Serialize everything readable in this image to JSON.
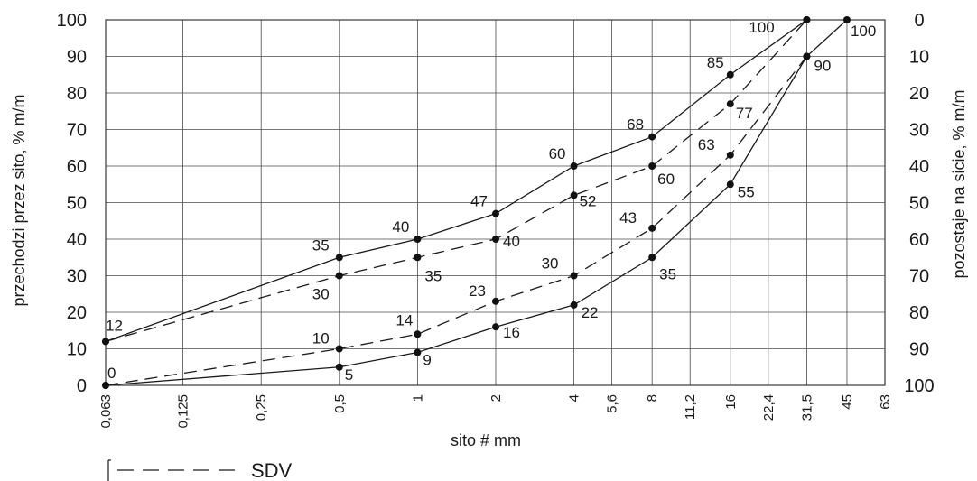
{
  "chart_data": {
    "type": "line",
    "x_ticks": [
      "0,063",
      "0,125",
      "0,25",
      "0,5",
      "1",
      "2",
      "4",
      "5,6",
      "8",
      "11,2",
      "16",
      "22,4",
      "31,5",
      "45",
      "63"
    ],
    "y_left_ticks": [
      "0",
      "10",
      "20",
      "30",
      "40",
      "50",
      "60",
      "70",
      "80",
      "90",
      "100"
    ],
    "y_right_ticks": [
      "100",
      "90",
      "80",
      "70",
      "60",
      "50",
      "40",
      "30",
      "20",
      "10",
      "0"
    ],
    "xlabel": "sito # mm",
    "ylabel": "przechodzi przez sito, % m/m",
    "ylabel_right": "pozostaje na sicie, % m/m",
    "ylim": [
      0,
      100
    ],
    "x_scale": "log",
    "grid": true,
    "legend": {
      "position": "bottom-left",
      "entries": [
        {
          "label": "SDV",
          "style": "dashed"
        }
      ]
    },
    "series": [
      {
        "style": "solid",
        "points": [
          {
            "x": "0,063",
            "y": 12,
            "label": "12"
          },
          {
            "x": "0,5",
            "y": 35,
            "label": "35"
          },
          {
            "x": "1",
            "y": 40,
            "label": "40"
          },
          {
            "x": "2",
            "y": 47,
            "label": "47"
          },
          {
            "x": "4",
            "y": 60,
            "label": "60"
          },
          {
            "x": "8",
            "y": 68,
            "label": "68"
          },
          {
            "x": "16",
            "y": 85,
            "label": "85"
          },
          {
            "x": "31,5",
            "y": 100,
            "label": "100"
          }
        ]
      },
      {
        "name": "SDV",
        "style": "dashed",
        "points": [
          {
            "x": "0,063",
            "y": 12,
            "label": ""
          },
          {
            "x": "0,5",
            "y": 30,
            "label": "30"
          },
          {
            "x": "1",
            "y": 35,
            "label": "35"
          },
          {
            "x": "2",
            "y": 40,
            "label": "40"
          },
          {
            "x": "4",
            "y": 52,
            "label": "52"
          },
          {
            "x": "8",
            "y": 60,
            "label": "60"
          },
          {
            "x": "16",
            "y": 77,
            "label": "77"
          },
          {
            "x": "31,5",
            "y": 100,
            "label": ""
          }
        ]
      },
      {
        "name": "SDV",
        "style": "dashed",
        "points": [
          {
            "x": "0,063",
            "y": 0,
            "label": ""
          },
          {
            "x": "0,5",
            "y": 10,
            "label": "10"
          },
          {
            "x": "1",
            "y": 14,
            "label": "14"
          },
          {
            "x": "2",
            "y": 23,
            "label": "23"
          },
          {
            "x": "4",
            "y": 30,
            "label": "30"
          },
          {
            "x": "8",
            "y": 43,
            "label": "43"
          },
          {
            "x": "16",
            "y": 63,
            "label": "63"
          },
          {
            "x": "31,5",
            "y": 90,
            "label": ""
          }
        ]
      },
      {
        "style": "solid",
        "points": [
          {
            "x": "0,063",
            "y": 0,
            "label": "0"
          },
          {
            "x": "0,5",
            "y": 5,
            "label": "5"
          },
          {
            "x": "1",
            "y": 9,
            "label": "9"
          },
          {
            "x": "2",
            "y": 16,
            "label": "16"
          },
          {
            "x": "4",
            "y": 22,
            "label": "22"
          },
          {
            "x": "8",
            "y": 35,
            "label": "35"
          },
          {
            "x": "16",
            "y": 55,
            "label": "55"
          },
          {
            "x": "31,5",
            "y": 90,
            "label": "90"
          },
          {
            "x": "45",
            "y": 100,
            "label": "100"
          }
        ]
      }
    ]
  }
}
